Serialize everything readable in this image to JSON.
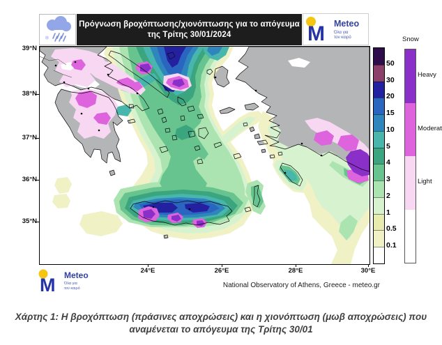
{
  "header": {
    "title_line1": "Πρόγνωση βροχόπτωσης/χιονόπτωσης για το απόγευμα",
    "title_line2": "της Τρίτης 30/01/2024"
  },
  "logo": {
    "name": "Meteo",
    "tagline_line1": "Όλα για",
    "tagline_line2": "τον καιρό",
    "brand_blue": "#2533a5",
    "brand_yellow": "#f6c514"
  },
  "map": {
    "lat_ticks": [
      "39°N",
      "38°N",
      "37°N",
      "36°N",
      "35°N"
    ],
    "lon_ticks": [
      "24°E",
      "26°E",
      "28°E",
      "30°E"
    ],
    "attribution": "National Observatory of Athens, Greece - meteo.gr"
  },
  "legend": {
    "rain": {
      "labels": [
        "50",
        "30",
        "20",
        "15",
        "10",
        "5",
        "4",
        "3",
        "2",
        "1",
        "0.5",
        "0.1"
      ],
      "colors_top_to_bottom": [
        "#2f0c4b",
        "#8c3f68",
        "#22219f",
        "#2a66c0",
        "#2e86bc",
        "#49b6ae",
        "#3aa57e",
        "#68c48e",
        "#abe4b0",
        "#d7f2cf",
        "#e7ecae",
        "#f1f1c6",
        "#ffffff"
      ]
    },
    "snow": {
      "title": "Snow",
      "labels": [
        "Heavy",
        "Moderate",
        "Light"
      ],
      "colors_top_to_bottom": [
        "#8a2fc7",
        "#de64de",
        "#f8d7f3",
        "#ffffff"
      ]
    }
  },
  "caption": "Χάρτης 1: Η βροχόπτωση (πράσινες αποχρώσεις) και η χιονόπτωση (μωβ αποχρώσεις) που αναμένεται το απόγευμα της Τρίτης 30/01"
}
